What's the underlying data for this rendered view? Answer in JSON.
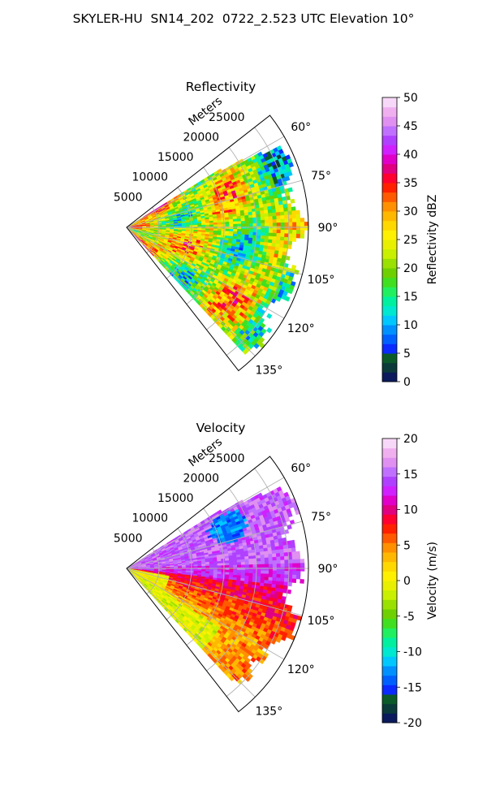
{
  "figure": {
    "suptitle": "SKYLER-HU  SN14_202  0722_2.523 UTC Elevation 10°"
  },
  "chart_data": [
    {
      "type": "heatmap",
      "title": "Reflectivity",
      "range_label": "Meters",
      "range_ticks": [
        5000,
        10000,
        15000,
        20000,
        25000
      ],
      "range_lim": [
        0,
        28000
      ],
      "azimuth_ticks": [
        "60°",
        "75°",
        "90°",
        "105°",
        "120°",
        "135°"
      ],
      "azimuth_lim": [
        52,
        142
      ],
      "grid": true,
      "colorbar": {
        "label": "Reflectivity dBZ",
        "vmin": 0,
        "vmax": 50,
        "ticks": [
          0,
          5,
          10,
          15,
          20,
          25,
          30,
          35,
          40,
          45,
          50
        ],
        "colors": [
          "#0a1a5c",
          "#0a3a3a",
          "#0b5a2a",
          "#0a2aff",
          "#0060ff",
          "#0090ff",
          "#00c8ff",
          "#00e8d0",
          "#00f0a0",
          "#20f060",
          "#40e020",
          "#6ed000",
          "#9ae000",
          "#c8f000",
          "#e8f000",
          "#fff000",
          "#ffd800",
          "#ffb800",
          "#ff9000",
          "#ff5a00",
          "#ff2000",
          "#ff0030",
          "#e00080",
          "#e000c8",
          "#d020ff",
          "#b040ff",
          "#c070ff",
          "#e090f0",
          "#f0b0f0",
          "#f8d8f8"
        ]
      }
    },
    {
      "type": "heatmap",
      "title": "Velocity",
      "range_label": "Meters",
      "range_ticks": [
        5000,
        10000,
        15000,
        20000,
        25000
      ],
      "range_lim": [
        0,
        28000
      ],
      "azimuth_ticks": [
        "60°",
        "75°",
        "90°",
        "105°",
        "120°",
        "135°"
      ],
      "azimuth_lim": [
        52,
        142
      ],
      "grid": true,
      "colorbar": {
        "label": "Velocity (m/s)",
        "vmin": -20,
        "vmax": 20,
        "ticks": [
          -20,
          -15,
          -10,
          -5,
          0,
          5,
          10,
          15,
          20
        ],
        "colors": [
          "#0a1a5c",
          "#0a3a3a",
          "#0b5a2a",
          "#0a2aff",
          "#0060ff",
          "#0090ff",
          "#00c8ff",
          "#00e8d0",
          "#00f0a0",
          "#20f060",
          "#40e020",
          "#6ed000",
          "#9ae000",
          "#c8f000",
          "#e8f000",
          "#fff000",
          "#ffd800",
          "#ffb800",
          "#ff9000",
          "#ff5a00",
          "#ff2000",
          "#ff0030",
          "#e00080",
          "#e000c8",
          "#d020ff",
          "#b040ff",
          "#c070ff",
          "#e090f0",
          "#f0b0f0",
          "#f8d8f8"
        ]
      }
    }
  ]
}
